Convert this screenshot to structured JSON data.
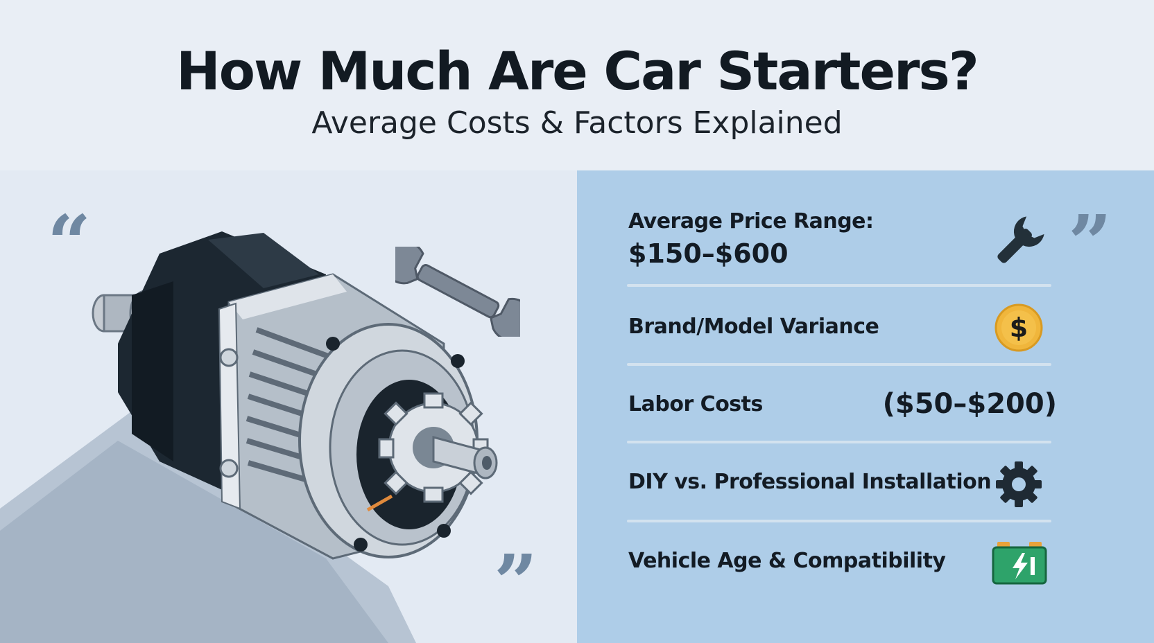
{
  "header": {
    "title": "How Much Are Car Starters?",
    "subtitle": "Average Costs & Factors Explained"
  },
  "decor": {
    "quote_icon": "quote-mark-icon",
    "illustration": "car-starter-motor-illustration",
    "wrench_icon": "wrench-icon"
  },
  "factors": {
    "price": {
      "label": "Average Price Range:",
      "value": "$150–$600",
      "icon": "wrench-icon"
    },
    "brand": {
      "label": "Brand/Model Variance",
      "icon": "dollar-coin-icon"
    },
    "labor": {
      "label": "Labor Costs",
      "value": "($50–$200)"
    },
    "diy": {
      "label": "DIY vs. Professional Installation",
      "icon": "gear-icon"
    },
    "vehicle": {
      "label": "Vehicle Age & Compatibility",
      "icon": "battery-icon"
    }
  },
  "colors": {
    "background": "#e9eef5",
    "right_panel": "#aecde8",
    "quote": "#6f88a2",
    "coin": "#f0b63c",
    "battery": "#2ea36a"
  }
}
